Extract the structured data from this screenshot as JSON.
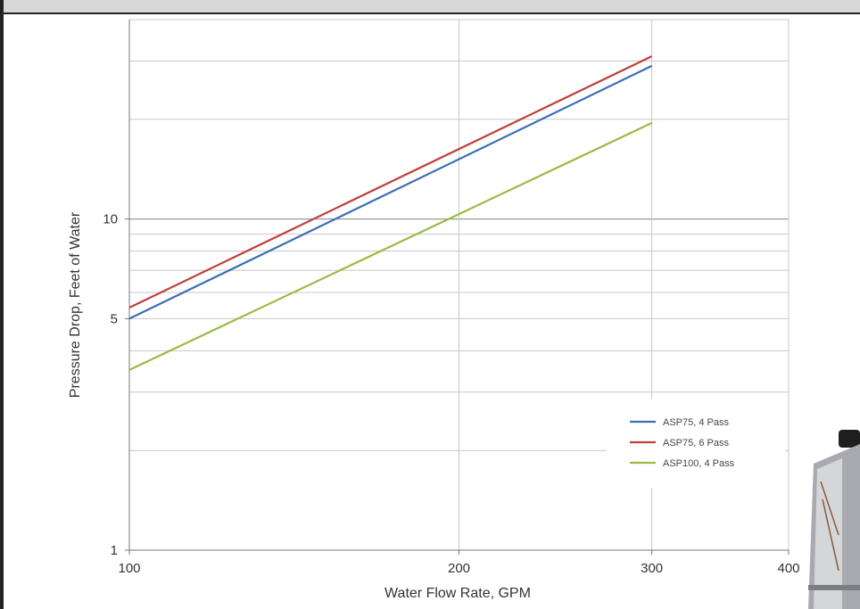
{
  "chart_data": {
    "type": "line",
    "x_scale": "log",
    "y_scale": "log",
    "xlabel": "Water Flow Rate, GPM",
    "ylabel": "Pressure Drop, Feet of Water",
    "xlim": [
      100,
      400
    ],
    "ylim": [
      1,
      40
    ],
    "x_ticks": [
      "100",
      "200",
      "300",
      "400"
    ],
    "y_ticks": [
      "1",
      "5",
      "10"
    ],
    "grid": true,
    "legend_position": "bottom-right",
    "series": [
      {
        "name": "ASP75, 4 Pass",
        "color": "#3a6fb5",
        "x": [
          100,
          300
        ],
        "y": [
          5.0,
          29.0
        ]
      },
      {
        "name": "ASP75, 6 Pass",
        "color": "#c0403c",
        "x": [
          100,
          300
        ],
        "y": [
          5.4,
          31.0
        ]
      },
      {
        "name": "ASP100, 4 Pass",
        "color": "#9bbb45",
        "x": [
          100,
          300
        ],
        "y": [
          3.5,
          19.5
        ]
      }
    ]
  }
}
